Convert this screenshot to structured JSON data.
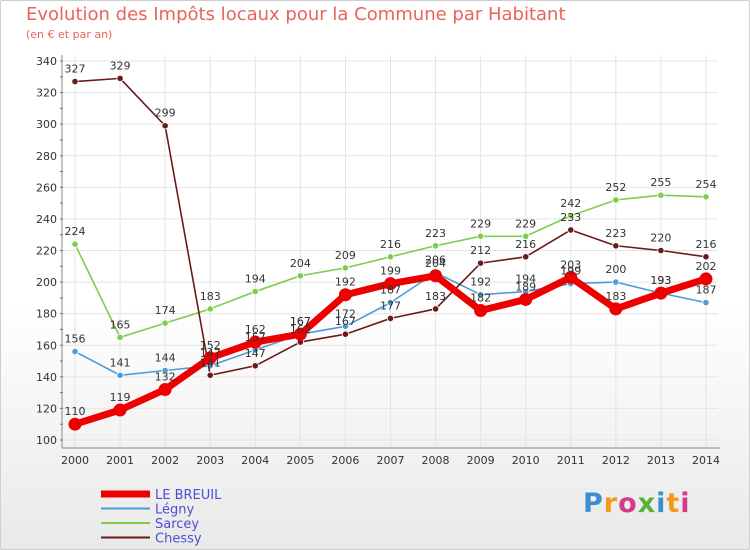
{
  "header": {
    "title": "Evolution des Impôts locaux pour la Commune par Habitant",
    "subtitle": "(en € et par an)"
  },
  "logo": {
    "text": "Proxiti"
  },
  "chart_data": {
    "type": "line",
    "title": "Evolution des Impôts locaux pour la Commune par Habitant",
    "subtitle": "(en € et par an)",
    "x": [
      "2000",
      "2001",
      "2002",
      "2003",
      "2004",
      "2005",
      "2006",
      "2007",
      "2008",
      "2009",
      "2010",
      "2011",
      "2012",
      "2013",
      "2014"
    ],
    "ylim": [
      100,
      340
    ],
    "yticks": [
      100,
      120,
      140,
      160,
      180,
      200,
      220,
      240,
      260,
      280,
      300,
      320,
      340
    ],
    "grid": true,
    "legend_position": "bottom-left",
    "series": [
      {
        "name": "LE BREUIL",
        "color": "#ee0000",
        "emphasis": true,
        "values": [
          110,
          119,
          132,
          152,
          162,
          167,
          192,
          199,
          204,
          182,
          189,
          203,
          183,
          193,
          202
        ]
      },
      {
        "name": "Légny",
        "color": "#4f9bd6",
        "emphasis": false,
        "values": [
          156,
          141,
          144,
          147,
          157,
          167,
          172,
          187,
          206,
          192,
          194,
          199,
          200,
          193,
          187
        ]
      },
      {
        "name": "Sarcey",
        "color": "#7fcd4a",
        "emphasis": false,
        "values": [
          224,
          165,
          174,
          183,
          194,
          204,
          209,
          216,
          223,
          229,
          229,
          242,
          252,
          255,
          254
        ]
      },
      {
        "name": "Chessy",
        "color": "#6b1a1a",
        "emphasis": false,
        "values": [
          327,
          329,
          299,
          141,
          147,
          162,
          167,
          177,
          183,
          212,
          216,
          233,
          223,
          220,
          216
        ]
      }
    ]
  }
}
